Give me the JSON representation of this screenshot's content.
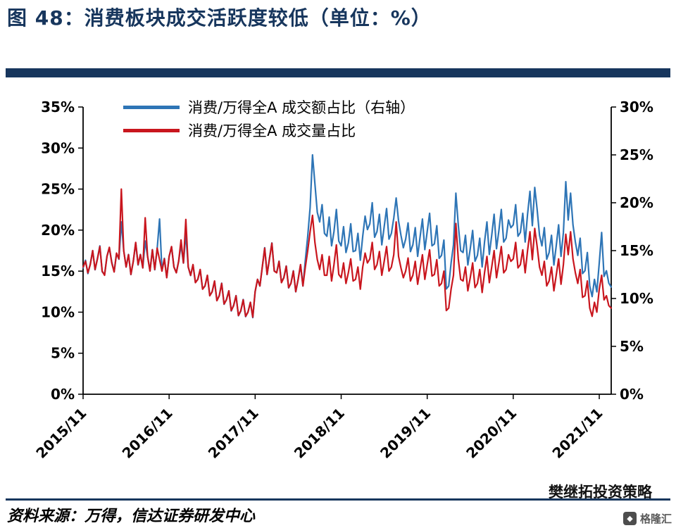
{
  "header": {
    "title": "图 48：消费板块成交活跃度较低（单位：%）"
  },
  "legend": [
    {
      "label": "消费/万得全A  成交额占比（右轴）",
      "color": "#2e75b6"
    },
    {
      "label": "消费/万得全A  成交量占比",
      "color": "#c9161e"
    }
  ],
  "chart_data": {
    "type": "line",
    "title": "消费板块成交活跃度较低（单位：%）",
    "x_start": "2015/11",
    "x_end": "2021/12",
    "points_per_month": 3,
    "x_tick_labels": [
      "2015/11",
      "2016/11",
      "2017/11",
      "2018/11",
      "2019/11",
      "2020/11",
      "2021/11"
    ],
    "x_tick_month_index": [
      0,
      12,
      24,
      36,
      48,
      60,
      72
    ],
    "grid": "off",
    "legend_position": "top-left-inside",
    "y_left": {
      "min": 0,
      "max": 35,
      "ticks": [
        "0%",
        "5%",
        "10%",
        "15%",
        "20%",
        "25%",
        "30%",
        "35%"
      ]
    },
    "y_right": {
      "min": 0,
      "max": 30,
      "ticks": [
        "0%",
        "5%",
        "10%",
        "15%",
        "20%",
        "25%",
        "30%"
      ]
    },
    "series": [
      {
        "name": "消费/万得全A 成交额占比（右轴）",
        "axis": "right",
        "color": "#2e75b6",
        "values": [
          13.2,
          14.0,
          12.6,
          13.6,
          15.0,
          13.0,
          14.2,
          15.5,
          12.8,
          12.5,
          14.4,
          15.3,
          13.8,
          12.8,
          14.7,
          14.1,
          18.0,
          15.0,
          13.3,
          14.6,
          12.5,
          13.9,
          15.8,
          13.5,
          14.6,
          13.2,
          16.0,
          14.4,
          12.9,
          15.1,
          13.0,
          15.2,
          18.3,
          12.9,
          14.2,
          12.2,
          14.4,
          15.4,
          13.3,
          12.7,
          13.9,
          15.6,
          13.7,
          16.8,
          13.3,
          12.4,
          13.5,
          11.7,
          12.0,
          13.0,
          11.0,
          11.3,
          12.4,
          10.3,
          10.7,
          11.8,
          9.8,
          10.3,
          11.6,
          9.4,
          9.9,
          10.8,
          8.7,
          9.3,
          10.3,
          8.2,
          8.7,
          9.9,
          8.1,
          8.6,
          9.6,
          8.0,
          10.7,
          12.0,
          11.3,
          13.3,
          15.3,
          12.5,
          14.2,
          15.8,
          12.9,
          12.7,
          13.9,
          11.7,
          12.2,
          13.4,
          11.1,
          11.6,
          12.9,
          10.7,
          12.0,
          13.5,
          11.3,
          14.0,
          16.5,
          19.5,
          25.0,
          22.0,
          19.0,
          18.0,
          19.8,
          16.8,
          16.5,
          18.5,
          15.5,
          17.0,
          19.3,
          16.0,
          15.5,
          17.5,
          14.8,
          15.8,
          17.8,
          14.9,
          15.0,
          16.8,
          14.0,
          16.5,
          18.6,
          17.2,
          17.8,
          20.0,
          16.4,
          17.0,
          18.8,
          15.6,
          17.5,
          19.4,
          16.2,
          16.8,
          18.4,
          20.5,
          18.1,
          16.6,
          15.3,
          16.2,
          17.9,
          14.9,
          15.6,
          17.4,
          14.4,
          16.4,
          18.3,
          15.1,
          17.0,
          18.9,
          15.5,
          15.7,
          17.6,
          14.2,
          14.5,
          16.1,
          11.0,
          11.3,
          13.7,
          15.6,
          21.0,
          17.7,
          15.0,
          14.8,
          16.6,
          13.5,
          15.2,
          17.1,
          13.9,
          14.5,
          16.3,
          13.3,
          15.9,
          18.0,
          14.6,
          16.6,
          18.8,
          15.2,
          17.1,
          19.3,
          15.9,
          16.3,
          18.2,
          17.4,
          17.7,
          19.8,
          16.5,
          16.9,
          18.9,
          15.9,
          18.8,
          21.2,
          17.6,
          21.6,
          19.3,
          16.6,
          15.5,
          17.4,
          14.1,
          14.8,
          16.6,
          13.5,
          15.5,
          17.7,
          14.4,
          16.9,
          22.2,
          18.2,
          21.0,
          17.7,
          15.9,
          14.5,
          16.3,
          12.6,
          12.9,
          14.8,
          11.3,
          10.2,
          12.0,
          10.7,
          13.7,
          16.9,
          12.3,
          12.9,
          11.6,
          11.2
        ]
      },
      {
        "name": "消费/万得全A 成交量占比",
        "axis": "left",
        "color": "#c9161e",
        "values": [
          15.5,
          16.2,
          14.8,
          15.8,
          17.5,
          15.2,
          16.5,
          18.0,
          15.0,
          14.5,
          16.8,
          17.9,
          16.0,
          14.9,
          17.2,
          16.5,
          25.0,
          17.5,
          15.5,
          17.0,
          14.6,
          16.2,
          18.5,
          15.8,
          17.0,
          15.4,
          21.5,
          16.8,
          15.0,
          17.6,
          15.2,
          17.8,
          16.4,
          15.0,
          16.5,
          14.2,
          16.8,
          18.0,
          15.5,
          14.8,
          16.2,
          18.8,
          16.0,
          21.3,
          15.5,
          14.5,
          15.8,
          13.6,
          14.0,
          15.2,
          12.8,
          13.2,
          14.5,
          12.0,
          12.5,
          13.8,
          11.4,
          12.0,
          13.5,
          11.0,
          11.5,
          12.6,
          10.2,
          10.8,
          12.0,
          9.6,
          10.2,
          11.5,
          9.5,
          10.0,
          11.2,
          9.4,
          12.5,
          14.0,
          13.2,
          15.5,
          17.8,
          14.6,
          16.5,
          18.4,
          15.0,
          14.8,
          16.2,
          13.6,
          14.2,
          15.6,
          13.0,
          13.5,
          15.0,
          12.5,
          14.0,
          15.8,
          13.2,
          15.5,
          17.5,
          19.8,
          21.8,
          18.5,
          16.4,
          15.2,
          17.0,
          14.5,
          14.5,
          16.8,
          13.8,
          15.8,
          18.2,
          14.6,
          14.2,
          16.0,
          13.5,
          14.8,
          16.5,
          13.8,
          14.0,
          15.5,
          12.8,
          15.5,
          17.2,
          16.0,
          16.5,
          18.5,
          15.2,
          15.8,
          17.4,
          14.5,
          16.2,
          18.0,
          15.0,
          15.5,
          17.0,
          21.0,
          16.8,
          15.4,
          14.2,
          15.0,
          16.6,
          13.8,
          14.5,
          16.2,
          13.4,
          15.2,
          17.0,
          14.0,
          15.8,
          17.6,
          14.4,
          14.6,
          16.4,
          13.2,
          13.5,
          15.0,
          10.2,
          10.5,
          12.8,
          14.5,
          20.8,
          16.5,
          14.0,
          13.8,
          15.5,
          12.6,
          14.2,
          16.0,
          13.0,
          13.5,
          15.2,
          12.4,
          14.8,
          16.8,
          13.6,
          15.5,
          17.5,
          14.2,
          16.0,
          18.0,
          14.8,
          15.2,
          17.0,
          16.2,
          16.5,
          18.5,
          15.4,
          15.8,
          17.6,
          14.8,
          17.5,
          19.8,
          16.4,
          20.2,
          18.0,
          15.5,
          14.5,
          16.2,
          13.2,
          13.8,
          15.5,
          12.6,
          14.5,
          16.5,
          13.4,
          15.8,
          19.5,
          17.0,
          19.8,
          16.5,
          14.8,
          13.5,
          15.2,
          11.8,
          12.0,
          13.8,
          10.5,
          9.5,
          11.2,
          10.0,
          12.8,
          14.5,
          11.5,
          12.0,
          10.8,
          10.5
        ]
      }
    ]
  },
  "footer": {
    "source": "资料来源：万得，信达证券研发中心",
    "watermark": "樊继拓投资策略",
    "logo_text": "格隆汇",
    "logo_glyph": "◆"
  }
}
